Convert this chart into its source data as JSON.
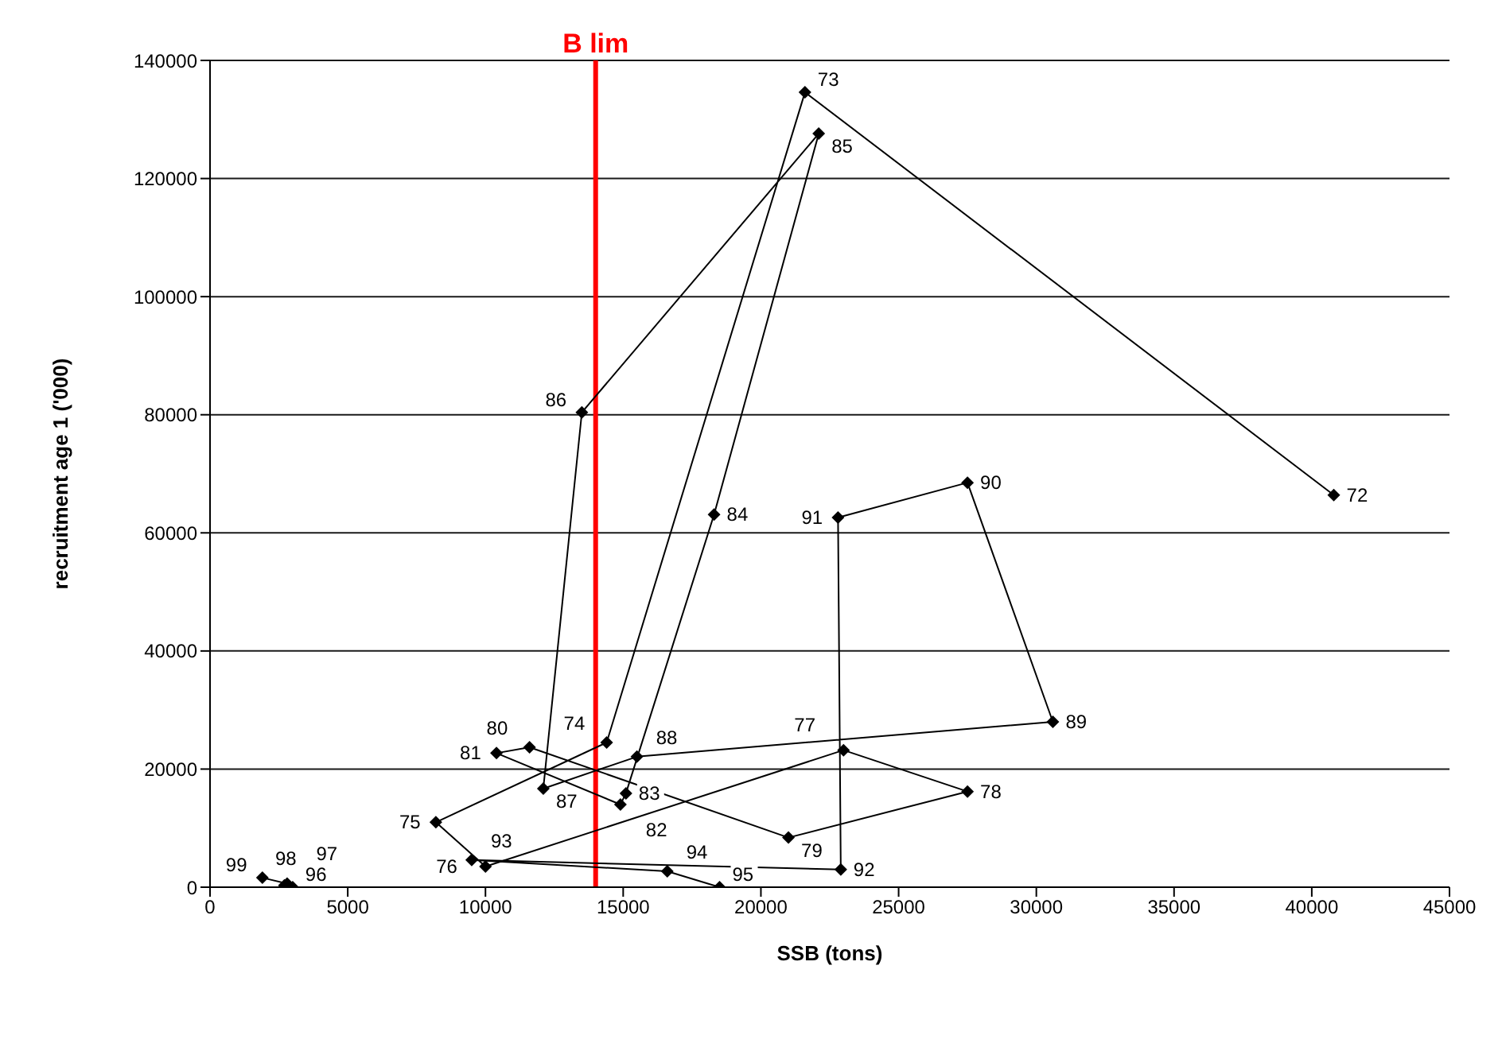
{
  "chart_data": {
    "type": "line",
    "xlabel": "SSB (tons)",
    "ylabel": "recruitment age 1 ('000)",
    "x": [
      40800,
      21600,
      14400,
      8200,
      10000,
      23000,
      27500,
      21000,
      11600,
      10400,
      14900,
      15100,
      18300,
      22100,
      13500,
      12100,
      15500,
      30600,
      27500,
      22800,
      22900,
      9500,
      16600,
      18500,
      3000,
      2700,
      2800,
      1900
    ],
    "series": [
      {
        "color": "#000000",
        "values": [
          66400,
          134600,
          24500,
          11000,
          3500,
          23200,
          16200,
          8400,
          23700,
          22700,
          14000,
          15900,
          63100,
          127600,
          80400,
          16700,
          22100,
          28000,
          68500,
          62600,
          3000,
          4600,
          2700,
          0,
          0,
          300,
          600,
          1600
        ]
      }
    ],
    "xlim": [
      0,
      45000
    ],
    "xticks": [
      0,
      5000,
      10000,
      15000,
      20000,
      25000,
      30000,
      35000,
      40000,
      45000
    ],
    "ylim": [
      0,
      140000
    ],
    "yticks": [
      0,
      20000,
      40000,
      60000,
      80000,
      100000,
      120000,
      140000
    ],
    "grid": "y",
    "marker": "diamond",
    "line_style": "solid",
    "ref_lines": [
      {
        "axis": "x",
        "value": 14000,
        "label": "B lim",
        "color": "#ff0000"
      }
    ],
    "annotations": [
      {
        "text": "72",
        "x": 40800,
        "y": 66400
      },
      {
        "text": "73",
        "x": 21600,
        "y": 134600
      },
      {
        "text": "74",
        "x": 14400,
        "y": 24500
      },
      {
        "text": "75",
        "x": 8200,
        "y": 11000
      },
      {
        "text": "76",
        "x": 10000,
        "y": 3500
      },
      {
        "text": "77",
        "x": 23000,
        "y": 23200
      },
      {
        "text": "78",
        "x": 27500,
        "y": 16200
      },
      {
        "text": "79",
        "x": 21000,
        "y": 8400
      },
      {
        "text": "80",
        "x": 11600,
        "y": 23700
      },
      {
        "text": "81",
        "x": 10400,
        "y": 22700
      },
      {
        "text": "82",
        "x": 14900,
        "y": 14000
      },
      {
        "text": "83",
        "x": 15100,
        "y": 15900
      },
      {
        "text": "84",
        "x": 18300,
        "y": 63100
      },
      {
        "text": "85",
        "x": 22100,
        "y": 127600
      },
      {
        "text": "86",
        "x": 13500,
        "y": 80400
      },
      {
        "text": "87",
        "x": 12100,
        "y": 16700
      },
      {
        "text": "88",
        "x": 15500,
        "y": 22100
      },
      {
        "text": "89",
        "x": 30600,
        "y": 28000
      },
      {
        "text": "90",
        "x": 27500,
        "y": 68500
      },
      {
        "text": "91",
        "x": 22800,
        "y": 62600
      },
      {
        "text": "92",
        "x": 22900,
        "y": 3000
      },
      {
        "text": "93",
        "x": 9500,
        "y": 4600
      },
      {
        "text": "94",
        "x": 16600,
        "y": 2700
      },
      {
        "text": "95",
        "x": 18500,
        "y": 0
      },
      {
        "text": "96",
        "x": 3000,
        "y": 0
      },
      {
        "text": "97",
        "x": 2700,
        "y": 300
      },
      {
        "text": "98",
        "x": 2800,
        "y": 600
      },
      {
        "text": "99",
        "x": 1900,
        "y": 1600
      }
    ]
  }
}
